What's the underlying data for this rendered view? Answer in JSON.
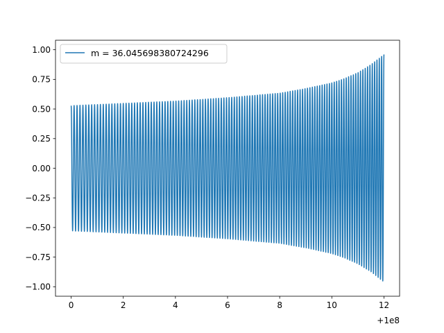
{
  "chart_data": {
    "type": "line",
    "title": "",
    "xlabel": "",
    "ylabel": "",
    "x_offset_label": "+1e8",
    "xlim": [
      -0.6,
      12.6
    ],
    "ylim": [
      -1.08,
      1.08
    ],
    "x_ticks": [
      {
        "value": 0,
        "label": "0"
      },
      {
        "value": 2,
        "label": "2"
      },
      {
        "value": 4,
        "label": "4"
      },
      {
        "value": 6,
        "label": "6"
      },
      {
        "value": 8,
        "label": "8"
      },
      {
        "value": 10,
        "label": "10"
      },
      {
        "value": 12,
        "label": "12"
      }
    ],
    "y_ticks": [
      {
        "value": 1.0,
        "label": "1.00"
      },
      {
        "value": 0.75,
        "label": "0.75"
      },
      {
        "value": 0.5,
        "label": "0.50"
      },
      {
        "value": 0.25,
        "label": "0.25"
      },
      {
        "value": 0.0,
        "label": "0.00"
      },
      {
        "value": -0.25,
        "label": "−0.25"
      },
      {
        "value": -0.5,
        "label": "−0.50"
      },
      {
        "value": -0.75,
        "label": "−0.75"
      },
      {
        "value": -1.0,
        "label": "−1.00"
      }
    ],
    "grid": false,
    "legend_position": "top-left",
    "series": [
      {
        "name": "m = 36.045698380724296",
        "color": "#1f77b4",
        "x_start": 0,
        "x_end": 12,
        "cycles": 120,
        "envelope": [
          {
            "x": 0,
            "amp": 0.55
          },
          {
            "x": 2,
            "amp": 0.57
          },
          {
            "x": 4,
            "amp": 0.59
          },
          {
            "x": 6,
            "amp": 0.62
          },
          {
            "x": 8,
            "amp": 0.66
          },
          {
            "x": 9,
            "amp": 0.7
          },
          {
            "x": 10,
            "amp": 0.75
          },
          {
            "x": 10.5,
            "amp": 0.79
          },
          {
            "x": 11,
            "amp": 0.84
          },
          {
            "x": 11.5,
            "amp": 0.91
          },
          {
            "x": 12,
            "amp": 1.0
          }
        ]
      }
    ]
  }
}
